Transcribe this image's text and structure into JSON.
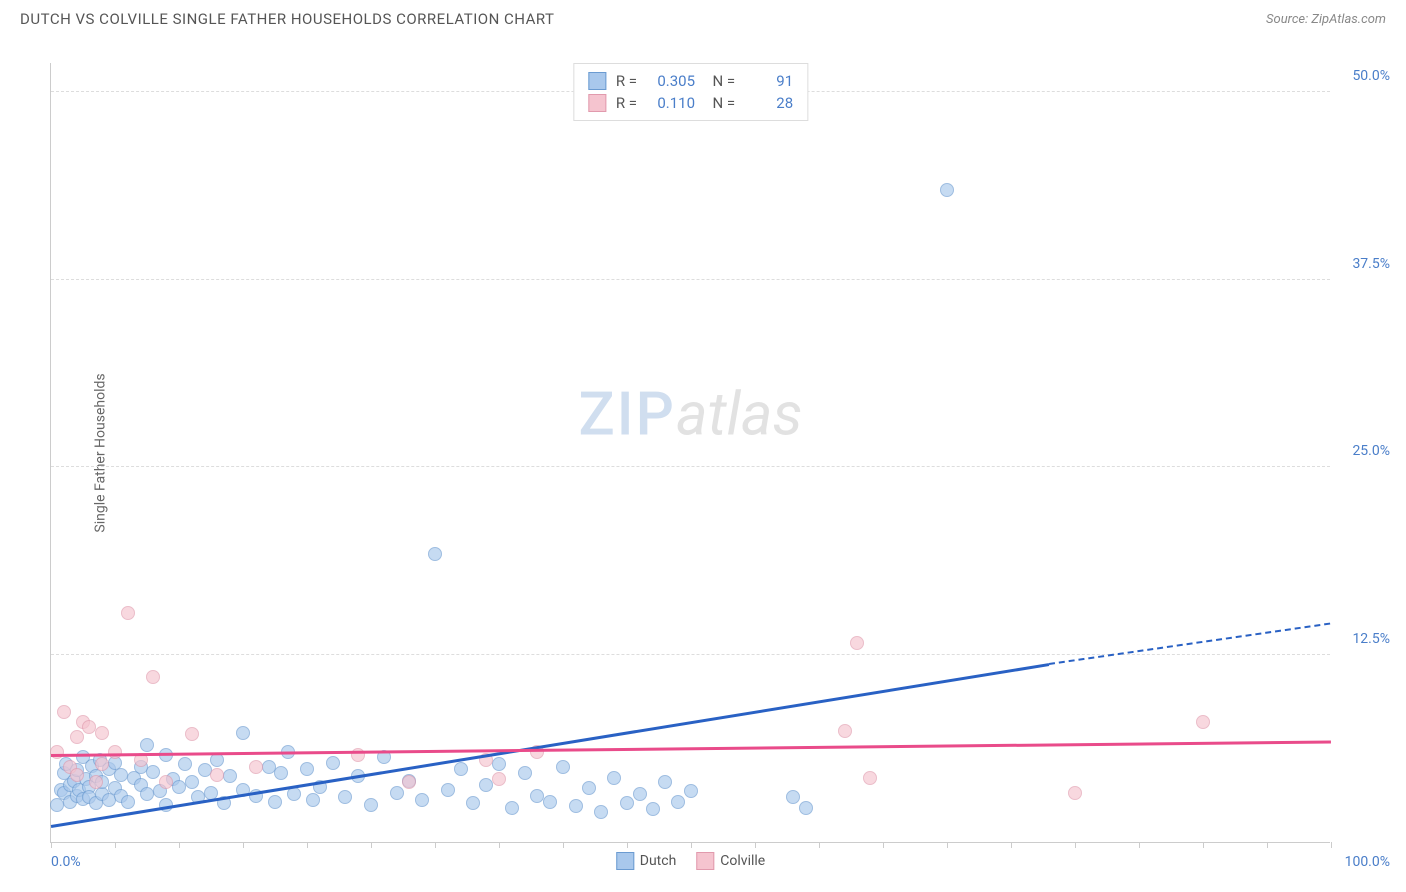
{
  "header": {
    "title": "DUTCH VS COLVILLE SINGLE FATHER HOUSEHOLDS CORRELATION CHART",
    "source": "Source: ZipAtlas.com"
  },
  "watermark": {
    "part1": "ZIP",
    "part2": "atlas"
  },
  "chart": {
    "type": "scatter",
    "y_axis_title": "Single Father Households",
    "background_color": "#ffffff",
    "grid_color": "#dddddd",
    "axis_color": "#cccccc",
    "label_color": "#4a7ec9",
    "xlim": [
      0,
      100
    ],
    "ylim": [
      0,
      52
    ],
    "x_tick_step": 5,
    "x_label_min": "0.0%",
    "x_label_max": "100.0%",
    "y_gridlines": [
      {
        "value": 12.5,
        "label": "12.5%"
      },
      {
        "value": 25.0,
        "label": "25.0%"
      },
      {
        "value": 37.5,
        "label": "37.5%"
      },
      {
        "value": 50.0,
        "label": "50.0%"
      }
    ],
    "series": [
      {
        "name": "Dutch",
        "fill_color": "#a9c8ec",
        "stroke_color": "#6b9bd1",
        "fill_opacity": 0.65,
        "marker_radius": 7,
        "trend": {
          "color": "#2961c4",
          "x1": 0,
          "y1": 1.0,
          "x2": 78,
          "y2": 11.8,
          "dash_to_x": 100,
          "dash_to_y": 14.5
        },
        "stats": {
          "R": "0.305",
          "N": "91"
        },
        "points": [
          [
            0.5,
            2.5
          ],
          [
            0.8,
            3.5
          ],
          [
            1,
            4.6
          ],
          [
            1,
            3.3
          ],
          [
            1.2,
            5.2
          ],
          [
            1.5,
            2.7
          ],
          [
            1.5,
            3.8
          ],
          [
            1.8,
            4.1
          ],
          [
            2,
            3.1
          ],
          [
            2,
            4.8
          ],
          [
            2.2,
            3.5
          ],
          [
            2.5,
            5.7
          ],
          [
            2.5,
            2.9
          ],
          [
            2.7,
            4.2
          ],
          [
            3,
            3.7
          ],
          [
            3,
            3.0
          ],
          [
            3.2,
            5.1
          ],
          [
            3.5,
            4.4
          ],
          [
            3.5,
            2.6
          ],
          [
            3.8,
            5.5
          ],
          [
            4,
            3.2
          ],
          [
            4,
            4.0
          ],
          [
            4.5,
            4.9
          ],
          [
            4.5,
            2.8
          ],
          [
            5,
            3.6
          ],
          [
            5,
            5.3
          ],
          [
            5.5,
            4.5
          ],
          [
            5.5,
            3.1
          ],
          [
            6,
            2.7
          ],
          [
            6.5,
            4.3
          ],
          [
            7,
            3.8
          ],
          [
            7,
            5.0
          ],
          [
            7.5,
            6.5
          ],
          [
            7.5,
            3.2
          ],
          [
            8,
            4.7
          ],
          [
            8.5,
            3.4
          ],
          [
            9,
            5.8
          ],
          [
            9,
            2.5
          ],
          [
            9.5,
            4.2
          ],
          [
            10,
            3.7
          ],
          [
            10.5,
            5.2
          ],
          [
            11,
            4.0
          ],
          [
            11.5,
            3.0
          ],
          [
            12,
            4.8
          ],
          [
            12.5,
            3.3
          ],
          [
            13,
            5.5
          ],
          [
            13.5,
            2.6
          ],
          [
            14,
            4.4
          ],
          [
            15,
            7.3
          ],
          [
            15,
            3.5
          ],
          [
            16,
            3.1
          ],
          [
            17,
            5.0
          ],
          [
            17.5,
            2.7
          ],
          [
            18,
            4.6
          ],
          [
            18.5,
            6.0
          ],
          [
            19,
            3.2
          ],
          [
            20,
            4.9
          ],
          [
            20.5,
            2.8
          ],
          [
            21,
            3.7
          ],
          [
            22,
            5.3
          ],
          [
            23,
            3.0
          ],
          [
            24,
            4.4
          ],
          [
            25,
            2.5
          ],
          [
            26,
            5.7
          ],
          [
            27,
            3.3
          ],
          [
            28,
            4.1
          ],
          [
            29,
            2.8
          ],
          [
            30,
            19.2
          ],
          [
            31,
            3.5
          ],
          [
            32,
            4.9
          ],
          [
            33,
            2.6
          ],
          [
            34,
            3.8
          ],
          [
            35,
            5.2
          ],
          [
            36,
            2.3
          ],
          [
            37,
            4.6
          ],
          [
            38,
            3.1
          ],
          [
            39,
            2.7
          ],
          [
            40,
            5.0
          ],
          [
            41,
            2.4
          ],
          [
            42,
            3.6
          ],
          [
            43,
            2.0
          ],
          [
            44,
            4.3
          ],
          [
            45,
            2.6
          ],
          [
            46,
            3.2
          ],
          [
            47,
            2.2
          ],
          [
            48,
            4.0
          ],
          [
            49,
            2.7
          ],
          [
            50,
            3.4
          ],
          [
            58,
            3.0
          ],
          [
            59,
            2.3
          ],
          [
            70,
            43.5
          ]
        ]
      },
      {
        "name": "Colville",
        "fill_color": "#f5c4cf",
        "stroke_color": "#e19aad",
        "fill_opacity": 0.65,
        "marker_radius": 7,
        "trend": {
          "color": "#e94b8a",
          "x1": 0,
          "y1": 5.7,
          "x2": 100,
          "y2": 6.6
        },
        "stats": {
          "R": "0.110",
          "N": "28"
        },
        "points": [
          [
            0.5,
            6.0
          ],
          [
            1,
            8.7
          ],
          [
            1.5,
            5.0
          ],
          [
            2,
            7.0
          ],
          [
            2,
            4.5
          ],
          [
            2.5,
            8.0
          ],
          [
            3,
            7.7
          ],
          [
            3.5,
            4.0
          ],
          [
            4,
            7.3
          ],
          [
            4,
            5.2
          ],
          [
            5,
            6.0
          ],
          [
            6,
            15.3
          ],
          [
            7,
            5.5
          ],
          [
            8,
            11.0
          ],
          [
            9,
            4.0
          ],
          [
            11,
            7.2
          ],
          [
            13,
            4.5
          ],
          [
            16,
            5.0
          ],
          [
            24,
            5.8
          ],
          [
            28,
            4.0
          ],
          [
            34,
            5.5
          ],
          [
            35,
            4.2
          ],
          [
            38,
            6.0
          ],
          [
            62,
            7.4
          ],
          [
            63,
            13.3
          ],
          [
            64,
            4.3
          ],
          [
            80,
            3.3
          ],
          [
            90,
            8.0
          ]
        ]
      }
    ],
    "legend_bottom": [
      {
        "label": "Dutch",
        "fill": "#a9c8ec",
        "stroke": "#6b9bd1"
      },
      {
        "label": "Colville",
        "fill": "#f5c4cf",
        "stroke": "#e19aad"
      }
    ]
  }
}
